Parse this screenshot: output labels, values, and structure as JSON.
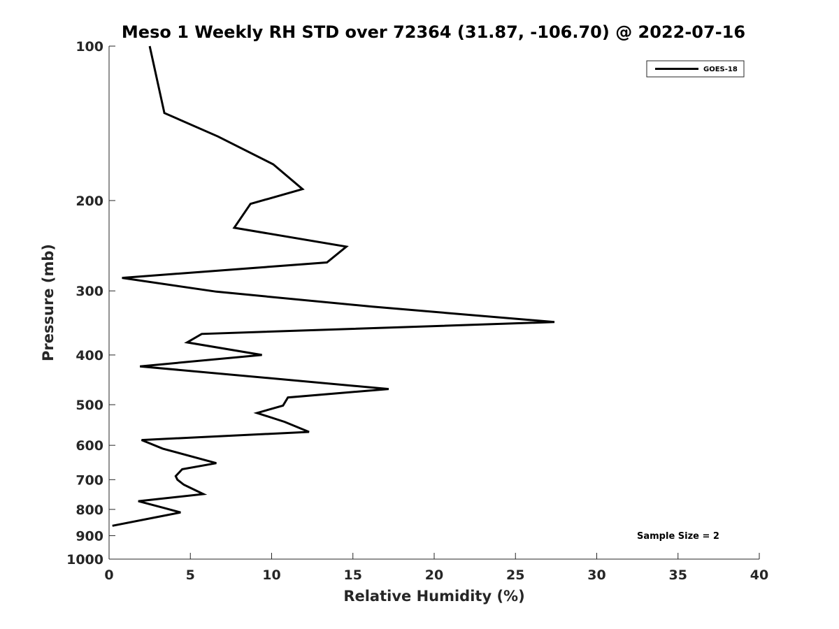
{
  "chart_data": {
    "type": "line",
    "title": "Meso 1 Weekly RH STD over 72364 (31.87, -106.70) @ 2022-07-16",
    "xlabel": "Relative Humidity (%)",
    "ylabel": "Pressure (mb)",
    "xlim": [
      0,
      40
    ],
    "ylim": [
      100,
      1000
    ],
    "y_scale": "log",
    "y_reversed": true,
    "x_ticks": [
      0,
      5,
      10,
      15,
      20,
      25,
      30,
      35,
      40
    ],
    "y_ticks": [
      100,
      200,
      300,
      400,
      500,
      600,
      700,
      800,
      900,
      1000
    ],
    "grid": false,
    "legend_position": "top-right",
    "series": [
      {
        "name": "GOES-18",
        "color": "#000000",
        "x": [
          2.5,
          3.4,
          6.7,
          10.1,
          11.9,
          8.7,
          7.7,
          14.6,
          13.4,
          0.8,
          6.6,
          16.2,
          27.4,
          5.7,
          4.8,
          9.4,
          1.9,
          17.2,
          11.0,
          10.7,
          9.1,
          10.8,
          12.3,
          2.0,
          3.3,
          6.6,
          4.5,
          4.1,
          4.2,
          4.6,
          5.8,
          1.8,
          3.4,
          4.4,
          3.1,
          0.2
        ],
        "y": [
          100,
          135,
          150,
          170,
          190,
          203,
          226,
          246,
          264,
          283,
          301,
          322,
          345,
          364,
          378,
          400,
          421,
          466,
          484,
          502,
          519,
          540,
          565,
          586,
          609,
          650,
          668,
          689,
          700,
          716,
          747,
          771,
          795,
          811,
          826,
          861
        ]
      }
    ],
    "annotations": [
      "Sample Size = 2"
    ]
  }
}
